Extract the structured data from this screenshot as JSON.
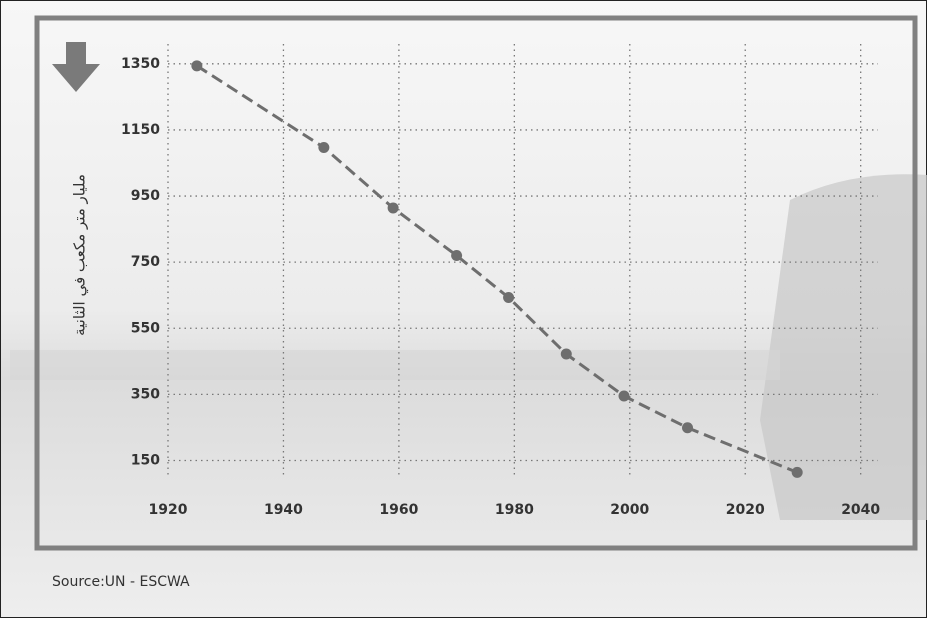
{
  "chart_data": {
    "type": "line",
    "y_label": "مليار متر مكعب في الثانية",
    "source": "Source:UN - ESCWA",
    "x": [
      1925,
      1947,
      1959,
      1970,
      1979,
      1989,
      1999,
      2010,
      2029
    ],
    "series": [
      {
        "color": "#6e6e6e",
        "values": [
          1344,
          1097,
          914,
          770,
          643,
          472,
          345,
          249,
          114
        ]
      }
    ],
    "xlim": [
      1920,
      2043
    ],
    "xticks": [
      1920,
      1940,
      1960,
      1980,
      2000,
      2020,
      2040
    ],
    "ylim": [
      100,
      1410
    ],
    "yticks": [
      150,
      350,
      550,
      750,
      950,
      1150,
      1350
    ],
    "grid": true
  }
}
